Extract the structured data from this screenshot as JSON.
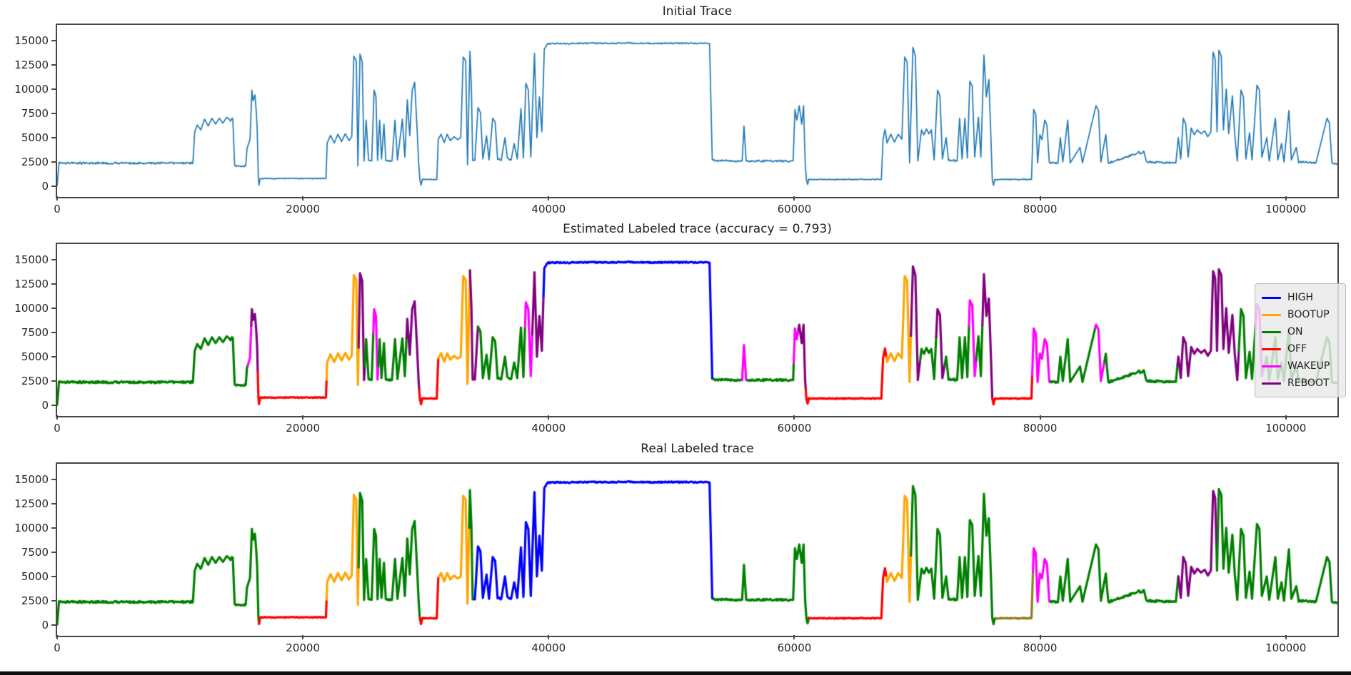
{
  "subplots": [
    {
      "title": "Initial Trace"
    },
    {
      "title": "Estimated Labeled trace (accuracy = 0.793)"
    },
    {
      "title": "Real Labeled trace"
    }
  ],
  "legend": {
    "entries": [
      {
        "label": "HIGH",
        "color": "#0000ff"
      },
      {
        "label": "BOOTUP",
        "color": "#ffa500"
      },
      {
        "label": "ON",
        "color": "#008000"
      },
      {
        "label": "OFF",
        "color": "#ff0000"
      },
      {
        "label": "WAKEUP",
        "color": "#ff00ff"
      },
      {
        "label": "REBOOT",
        "color": "#800080"
      }
    ]
  },
  "chart_data": {
    "type": "line",
    "title": "Initial Trace / Estimated Labeled trace (accuracy = 0.793) / Real Labeled trace",
    "xlabel": "",
    "ylabel": "",
    "accuracy": 0.793,
    "xlim": [
      0,
      104200
    ],
    "ylim": [
      -1100,
      16600
    ],
    "xticks": [
      0,
      20000,
      40000,
      60000,
      80000,
      100000
    ],
    "xtick_labels": [
      "0",
      "20000",
      "40000",
      "60000",
      "80000",
      "100000"
    ],
    "yticks": [
      0,
      2500,
      5000,
      7500,
      10000,
      12500,
      15000
    ],
    "ytick_labels": [
      "0",
      "2500",
      "5000",
      "7500",
      "10000",
      "12500",
      "15000"
    ],
    "grid": false,
    "legend_position": "right of middle subplot",
    "initial_trace_color": "#1f77b4",
    "label_colors": {
      "HIGH": "#0000ff",
      "BOOTUP": "#ffa500",
      "ON": "#008000",
      "OFF": "#ff0000",
      "WAKEUP": "#ff00ff",
      "REBOOT": "#800080",
      "UNLABELED": "#8f7d20"
    },
    "trace_keypoints": [
      [
        0,
        50
      ],
      [
        150,
        2380
      ],
      [
        11050,
        2380
      ],
      [
        11200,
        5600
      ],
      [
        11400,
        6300
      ],
      [
        11700,
        5800
      ],
      [
        12000,
        6900
      ],
      [
        12300,
        6200
      ],
      [
        12600,
        7000
      ],
      [
        12900,
        6400
      ],
      [
        13200,
        7000
      ],
      [
        13500,
        6500
      ],
      [
        13800,
        7100
      ],
      [
        14100,
        6800
      ],
      [
        14300,
        6900
      ],
      [
        14450,
        2050
      ],
      [
        15350,
        2100
      ],
      [
        15450,
        3850
      ],
      [
        15700,
        4850
      ],
      [
        15850,
        9900
      ],
      [
        15950,
        8800
      ],
      [
        16100,
        9400
      ],
      [
        16200,
        7800
      ],
      [
        16280,
        6000
      ],
      [
        16380,
        850
      ],
      [
        16430,
        120
      ],
      [
        16520,
        780
      ],
      [
        21880,
        800
      ],
      [
        21980,
        4450
      ],
      [
        22250,
        5250
      ],
      [
        22550,
        4450
      ],
      [
        22850,
        5350
      ],
      [
        23150,
        4600
      ],
      [
        23450,
        5400
      ],
      [
        23750,
        4700
      ],
      [
        23980,
        5100
      ],
      [
        24150,
        13400
      ],
      [
        24350,
        12900
      ],
      [
        24480,
        2100
      ],
      [
        24650,
        13600
      ],
      [
        24830,
        12800
      ],
      [
        24980,
        2600
      ],
      [
        25150,
        6800
      ],
      [
        25350,
        2650
      ],
      [
        25600,
        2600
      ],
      [
        25800,
        9900
      ],
      [
        25950,
        9200
      ],
      [
        26080,
        2650
      ],
      [
        26250,
        6800
      ],
      [
        26400,
        2800
      ],
      [
        26600,
        6400
      ],
      [
        26750,
        2650
      ],
      [
        27250,
        2600
      ],
      [
        27500,
        6800
      ],
      [
        27700,
        2700
      ],
      [
        28100,
        6900
      ],
      [
        28300,
        3000
      ],
      [
        28500,
        8900
      ],
      [
        28700,
        5200
      ],
      [
        28900,
        9900
      ],
      [
        29100,
        10700
      ],
      [
        29300,
        5800
      ],
      [
        29420,
        2500
      ],
      [
        29520,
        700
      ],
      [
        29620,
        100
      ],
      [
        29720,
        700
      ],
      [
        30900,
        700
      ],
      [
        31020,
        4850
      ],
      [
        31250,
        5350
      ],
      [
        31500,
        4500
      ],
      [
        31750,
        5350
      ],
      [
        32000,
        4700
      ],
      [
        32300,
        5100
      ],
      [
        32600,
        4800
      ],
      [
        32850,
        5000
      ],
      [
        33050,
        13300
      ],
      [
        33250,
        12900
      ],
      [
        33400,
        2200
      ],
      [
        33600,
        13900
      ],
      [
        33720,
        10000
      ],
      [
        33820,
        2600
      ],
      [
        34000,
        2650
      ],
      [
        34250,
        8100
      ],
      [
        34450,
        7600
      ],
      [
        34650,
        2800
      ],
      [
        34950,
        5200
      ],
      [
        35150,
        2700
      ],
      [
        35450,
        7000
      ],
      [
        35650,
        6600
      ],
      [
        35850,
        2800
      ],
      [
        36150,
        2700
      ],
      [
        36450,
        5000
      ],
      [
        36650,
        2800
      ],
      [
        36950,
        2700
      ],
      [
        37200,
        4400
      ],
      [
        37450,
        2800
      ],
      [
        37750,
        8000
      ],
      [
        37950,
        2900
      ],
      [
        38150,
        10600
      ],
      [
        38350,
        9900
      ],
      [
        38550,
        3000
      ],
      [
        38850,
        13700
      ],
      [
        39050,
        5000
      ],
      [
        39250,
        9200
      ],
      [
        39450,
        5600
      ],
      [
        39650,
        14100
      ],
      [
        39900,
        14650
      ],
      [
        40500,
        14700
      ],
      [
        41500,
        14680
      ],
      [
        43000,
        14720
      ],
      [
        45000,
        14700
      ],
      [
        46500,
        14750
      ],
      [
        48000,
        14700
      ],
      [
        50000,
        14720
      ],
      [
        52000,
        14700
      ],
      [
        53100,
        14680
      ],
      [
        53320,
        2650
      ],
      [
        55750,
        2600
      ],
      [
        55900,
        6200
      ],
      [
        56080,
        2600
      ],
      [
        59900,
        2600
      ],
      [
        60050,
        7900
      ],
      [
        60200,
        6800
      ],
      [
        60400,
        8300
      ],
      [
        60600,
        6400
      ],
      [
        60750,
        8300
      ],
      [
        60880,
        2500
      ],
      [
        60980,
        700
      ],
      [
        61080,
        180
      ],
      [
        61180,
        700
      ],
      [
        67080,
        700
      ],
      [
        67220,
        4850
      ],
      [
        67380,
        5850
      ],
      [
        67550,
        4450
      ],
      [
        67850,
        5350
      ],
      [
        68150,
        4550
      ],
      [
        68450,
        5350
      ],
      [
        68750,
        4850
      ],
      [
        68980,
        13300
      ],
      [
        69180,
        12800
      ],
      [
        69380,
        2400
      ],
      [
        69650,
        14300
      ],
      [
        69850,
        13400
      ],
      [
        70050,
        2600
      ],
      [
        70350,
        5800
      ],
      [
        70550,
        5300
      ],
      [
        70750,
        5900
      ],
      [
        70950,
        5400
      ],
      [
        71150,
        5800
      ],
      [
        71380,
        2700
      ],
      [
        71650,
        9900
      ],
      [
        71850,
        9300
      ],
      [
        72050,
        2800
      ],
      [
        72350,
        5000
      ],
      [
        72550,
        2700
      ],
      [
        73250,
        2600
      ],
      [
        73450,
        7000
      ],
      [
        73650,
        2800
      ],
      [
        73880,
        7000
      ],
      [
        74080,
        2900
      ],
      [
        74280,
        10800
      ],
      [
        74480,
        10300
      ],
      [
        74680,
        3000
      ],
      [
        74980,
        7100
      ],
      [
        75180,
        3000
      ],
      [
        75430,
        13500
      ],
      [
        75630,
        9200
      ],
      [
        75830,
        11000
      ],
      [
        76000,
        5000
      ],
      [
        76110,
        700
      ],
      [
        76210,
        100
      ],
      [
        76310,
        700
      ],
      [
        79300,
        700
      ],
      [
        79480,
        7900
      ],
      [
        79650,
        7400
      ],
      [
        79800,
        2400
      ],
      [
        79980,
        5300
      ],
      [
        80150,
        4800
      ],
      [
        80380,
        6800
      ],
      [
        80560,
        6300
      ],
      [
        80750,
        2400
      ],
      [
        81450,
        2350
      ],
      [
        81650,
        5000
      ],
      [
        81850,
        2500
      ],
      [
        82250,
        6800
      ],
      [
        82450,
        2400
      ],
      [
        83250,
        4000
      ],
      [
        83450,
        2400
      ],
      [
        84550,
        8300
      ],
      [
        84750,
        7800
      ],
      [
        84950,
        2500
      ],
      [
        85350,
        5300
      ],
      [
        85550,
        2400
      ],
      [
        88450,
        3600
      ],
      [
        88650,
        2500
      ],
      [
        91050,
        2400
      ],
      [
        91250,
        5000
      ],
      [
        91450,
        2800
      ],
      [
        91650,
        7000
      ],
      [
        91850,
        6400
      ],
      [
        92050,
        3000
      ],
      [
        92300,
        6000
      ],
      [
        92550,
        5300
      ],
      [
        92800,
        5800
      ],
      [
        93100,
        5400
      ],
      [
        93400,
        5700
      ],
      [
        93650,
        5100
      ],
      [
        93900,
        5600
      ],
      [
        94080,
        13800
      ],
      [
        94250,
        13100
      ],
      [
        94400,
        5600
      ],
      [
        94550,
        14000
      ],
      [
        94750,
        13400
      ],
      [
        94920,
        5800
      ],
      [
        95150,
        10000
      ],
      [
        95350,
        5400
      ],
      [
        95650,
        9300
      ],
      [
        95850,
        5200
      ],
      [
        96050,
        2600
      ],
      [
        96350,
        9900
      ],
      [
        96550,
        9200
      ],
      [
        96750,
        2800
      ],
      [
        97050,
        5500
      ],
      [
        97250,
        2700
      ],
      [
        97650,
        10400
      ],
      [
        97850,
        9900
      ],
      [
        98050,
        3000
      ],
      [
        98450,
        5000
      ],
      [
        98650,
        2600
      ],
      [
        99150,
        7000
      ],
      [
        99350,
        2700
      ],
      [
        99650,
        4400
      ],
      [
        99850,
        2500
      ],
      [
        100250,
        7800
      ],
      [
        100450,
        2700
      ],
      [
        100850,
        4000
      ],
      [
        101050,
        2500
      ],
      [
        102450,
        2400
      ],
      [
        103350,
        7000
      ],
      [
        103550,
        6500
      ],
      [
        103750,
        2400
      ],
      [
        104200,
        2250
      ]
    ],
    "est_label_segments": [
      [
        0,
        15500,
        "ON"
      ],
      [
        15500,
        15780,
        "WAKEUP"
      ],
      [
        15780,
        16330,
        "REBOOT"
      ],
      [
        16330,
        21930,
        "OFF"
      ],
      [
        21930,
        24520,
        "BOOTUP"
      ],
      [
        24520,
        25020,
        "REBOOT"
      ],
      [
        25020,
        25680,
        "ON"
      ],
      [
        25680,
        26120,
        "WAKEUP"
      ],
      [
        26120,
        28420,
        "ON"
      ],
      [
        28420,
        29460,
        "REBOOT"
      ],
      [
        29460,
        31000,
        "OFF"
      ],
      [
        31000,
        33540,
        "BOOTUP"
      ],
      [
        33540,
        34250,
        "REBOOT"
      ],
      [
        34250,
        38080,
        "ON"
      ],
      [
        38080,
        38620,
        "WAKEUP"
      ],
      [
        38620,
        39560,
        "REBOOT"
      ],
      [
        39560,
        53360,
        "HIGH"
      ],
      [
        53360,
        55700,
        "ON"
      ],
      [
        55700,
        56150,
        "WAKEUP"
      ],
      [
        56150,
        59940,
        "ON"
      ],
      [
        59940,
        60280,
        "WAKEUP"
      ],
      [
        60280,
        60930,
        "REBOOT"
      ],
      [
        60930,
        67470,
        "OFF"
      ],
      [
        67470,
        69440,
        "BOOTUP"
      ],
      [
        69440,
        70200,
        "REBOOT"
      ],
      [
        70200,
        71540,
        "ON"
      ],
      [
        71540,
        72200,
        "REBOOT"
      ],
      [
        72200,
        74180,
        "ON"
      ],
      [
        74180,
        74780,
        "WAKEUP"
      ],
      [
        74780,
        75280,
        "ON"
      ],
      [
        75280,
        76090,
        "REBOOT"
      ],
      [
        76090,
        79360,
        "OFF"
      ],
      [
        79360,
        80850,
        "WAKEUP"
      ],
      [
        80850,
        84440,
        "ON"
      ],
      [
        84440,
        85200,
        "WAKEUP"
      ],
      [
        85200,
        91140,
        "ON"
      ],
      [
        91140,
        96140,
        "REBOOT"
      ],
      [
        96140,
        97480,
        "ON"
      ],
      [
        97480,
        98220,
        "WAKEUP"
      ],
      [
        98220,
        104200,
        "ON"
      ]
    ],
    "real_label_segments": [
      [
        0,
        16430,
        "ON"
      ],
      [
        16430,
        21930,
        "OFF"
      ],
      [
        21930,
        24520,
        "BOOTUP"
      ],
      [
        24520,
        29500,
        "ON"
      ],
      [
        29500,
        31050,
        "OFF"
      ],
      [
        31050,
        33480,
        "BOOTUP"
      ],
      [
        33480,
        33890,
        "ON"
      ],
      [
        33890,
        53360,
        "HIGH"
      ],
      [
        53360,
        61150,
        "ON"
      ],
      [
        61150,
        67470,
        "OFF"
      ],
      [
        67470,
        69440,
        "BOOTUP"
      ],
      [
        69440,
        76330,
        "ON"
      ],
      [
        76330,
        79400,
        "UNLABELED"
      ],
      [
        79400,
        80850,
        "WAKEUP"
      ],
      [
        80850,
        91190,
        "ON"
      ],
      [
        91190,
        94330,
        "REBOOT"
      ],
      [
        94330,
        104200,
        "ON"
      ]
    ]
  }
}
